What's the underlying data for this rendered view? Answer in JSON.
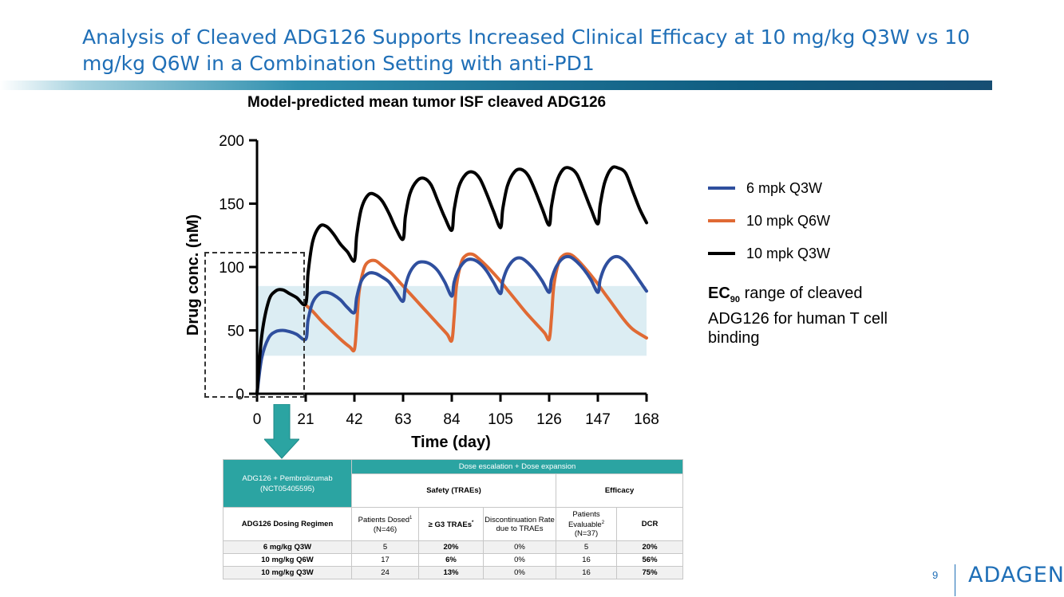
{
  "slide": {
    "title": "Analysis of Cleaved ADG126 Supports Increased Clinical Efficacy at 10 mg/kg Q3W vs 10 mg/kg Q6W in a Combination Setting with anti-PD1",
    "page_number": "9",
    "logo": "ADAGENE"
  },
  "chart_data": {
    "type": "line",
    "title": "Model-predicted mean tumor ISF cleaved ADG126",
    "xlabel": "Time (day)",
    "ylabel": "Drug conc. (nM)",
    "xlim": [
      0,
      168
    ],
    "ylim": [
      0,
      200
    ],
    "xticks": [
      0,
      21,
      42,
      63,
      84,
      105,
      126,
      147,
      168
    ],
    "yticks": [
      0,
      50,
      100,
      150,
      200
    ],
    "grid": false,
    "legend_position": "right",
    "band": {
      "y0": 30,
      "y1": 85,
      "color": "#dcedf3"
    },
    "ec_note": {
      "prefix": "EC",
      "sub": "90",
      "text": " range of cleaved ADG126 for human T cell binding"
    },
    "series": [
      {
        "name": "6 mpk Q3W",
        "color": "#2f4f9e",
        "x": [
          0,
          2,
          5,
          8,
          11,
          14,
          17,
          21,
          22,
          24,
          27,
          30,
          33,
          36,
          39,
          42,
          43,
          45,
          48,
          51,
          54,
          57,
          60,
          63,
          64,
          66,
          69,
          72,
          75,
          78,
          81,
          84,
          85,
          87,
          90,
          93,
          96,
          99,
          102,
          105,
          106,
          108,
          111,
          114,
          117,
          120,
          123,
          126,
          127,
          129,
          132,
          135,
          138,
          141,
          144,
          147,
          148,
          150,
          153,
          156,
          159,
          162,
          165,
          168
        ],
        "y": [
          0,
          28,
          44,
          49,
          50,
          49,
          47,
          43,
          58,
          72,
          79,
          80,
          78,
          74,
          68,
          64,
          76,
          89,
          95,
          95,
          92,
          88,
          80,
          73,
          85,
          96,
          103,
          104,
          102,
          97,
          88,
          77,
          88,
          98,
          105,
          106,
          103,
          97,
          88,
          79,
          89,
          99,
          106,
          107,
          103,
          97,
          89,
          80,
          90,
          100,
          107,
          108,
          104,
          98,
          90,
          80,
          90,
          100,
          107,
          108,
          104,
          97,
          89,
          81
        ]
      },
      {
        "name": "10 mpk Q6W",
        "color": "#e06a34",
        "x": [
          21,
          24,
          28,
          32,
          36,
          40,
          42,
          43,
          44,
          46,
          48,
          51,
          54,
          58,
          62,
          66,
          70,
          74,
          78,
          82,
          84,
          85,
          86,
          88,
          90,
          93,
          96,
          100,
          104,
          108,
          112,
          116,
          120,
          124,
          126,
          127,
          128,
          130,
          132,
          135,
          138,
          142,
          146,
          150,
          154,
          158,
          162,
          168
        ],
        "y": [
          70,
          65,
          57,
          50,
          43,
          37,
          35,
          55,
          80,
          98,
          104,
          105,
          101,
          95,
          87,
          79,
          71,
          63,
          55,
          47,
          42,
          60,
          85,
          103,
          109,
          110,
          106,
          99,
          91,
          82,
          73,
          64,
          56,
          48,
          43,
          60,
          85,
          103,
          109,
          110,
          106,
          98,
          89,
          79,
          69,
          59,
          51,
          44
        ]
      },
      {
        "name": "10 mpk Q3W",
        "color": "#000000",
        "x": [
          0,
          2,
          5,
          8,
          11,
          14,
          17,
          21,
          22,
          24,
          27,
          30,
          33,
          36,
          39,
          42,
          43,
          45,
          48,
          51,
          54,
          57,
          60,
          63,
          64,
          66,
          69,
          72,
          75,
          78,
          81,
          84,
          85,
          87,
          90,
          93,
          96,
          99,
          102,
          105,
          106,
          108,
          111,
          114,
          117,
          120,
          123,
          126,
          127,
          129,
          132,
          135,
          138,
          141,
          144,
          147,
          148,
          150,
          153,
          156,
          159,
          162,
          165,
          168
        ],
        "y": [
          0,
          45,
          73,
          81,
          82,
          79,
          76,
          71,
          95,
          120,
          132,
          132,
          126,
          118,
          112,
          105,
          125,
          146,
          157,
          157,
          152,
          142,
          130,
          122,
          140,
          158,
          168,
          170,
          165,
          152,
          139,
          129,
          145,
          163,
          173,
          175,
          170,
          158,
          144,
          131,
          146,
          164,
          175,
          177,
          172,
          160,
          146,
          133,
          148,
          166,
          177,
          178,
          173,
          160,
          146,
          134,
          149,
          167,
          178,
          178,
          174,
          160,
          146,
          135
        ]
      }
    ]
  },
  "table": {
    "group_header": "Dose escalation + Dose expansion",
    "combo_label": "ADG126 + Pembrolizumab",
    "combo_id": "(NCT05405595)",
    "safety_header": "Safety (TRAEs)",
    "efficacy_header": "Efficacy",
    "regimen_header": "ADG126 Dosing Regimen",
    "col_patients_dosed": "Patients Dosed",
    "col_patients_dosed_sup": "1",
    "col_patients_dosed_n": "(N=46)",
    "col_g3": "≥ G3 TRAEs",
    "col_g3_sup": "*",
    "col_discontinuation": "Discontinuation Rate due to TRAEs",
    "col_evaluable": "Patients Evaluable",
    "col_evaluable_sup": "2",
    "col_evaluable_n": "(N=37)",
    "col_dcr": "DCR",
    "rows": [
      {
        "regimen": "6 mg/kg Q3W",
        "dosed": "5",
        "g3": "20%",
        "disc": "0%",
        "evaluable": "5",
        "dcr": "20%"
      },
      {
        "regimen": "10 mg/kg Q6W",
        "dosed": "17",
        "g3": "6%",
        "disc": "0%",
        "evaluable": "16",
        "dcr": "56%"
      },
      {
        "regimen": "10 mg/kg Q3W",
        "dosed": "24",
        "g3": "13%",
        "disc": "0%",
        "evaluable": "16",
        "dcr": "75%"
      }
    ]
  }
}
